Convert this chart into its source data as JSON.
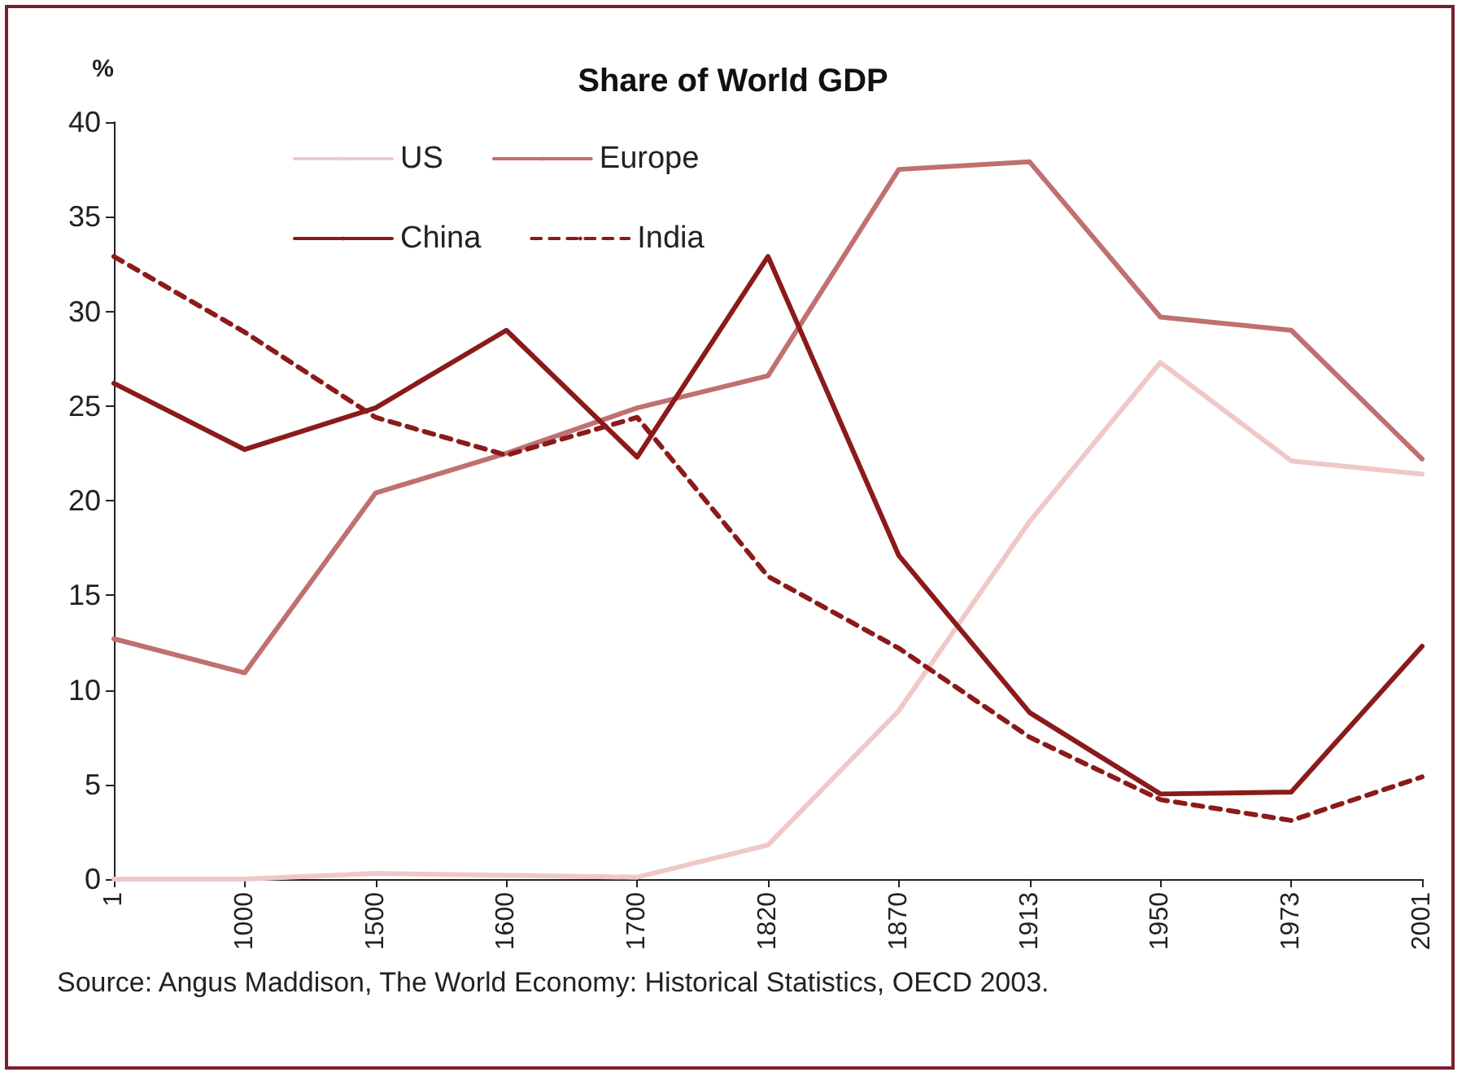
{
  "chart_data": {
    "type": "line",
    "title": "Share of World GDP",
    "ylabel": "%",
    "categories": [
      "1",
      "1000",
      "1500",
      "1600",
      "1700",
      "1820",
      "1870",
      "1913",
      "1950",
      "1973",
      "2001"
    ],
    "series": [
      {
        "name": "US",
        "color": "#f0c8c8",
        "values": [
          0,
          0,
          0.3,
          0.2,
          0.1,
          1.8,
          8.9,
          18.9,
          27.3,
          22.1,
          21.4
        ]
      },
      {
        "name": "Europe",
        "color": "#c07070",
        "values": [
          12.7,
          10.9,
          20.4,
          22.5,
          24.9,
          26.6,
          37.5,
          37.9,
          29.7,
          29.0,
          22.2
        ]
      },
      {
        "name": "China",
        "color": "#8b1a1a",
        "values": [
          26.2,
          22.7,
          24.9,
          29.0,
          22.3,
          32.9,
          17.1,
          8.8,
          4.5,
          4.6,
          12.3
        ]
      },
      {
        "name": "India",
        "color": "#8b1a1a",
        "line_style": "dashed",
        "values": [
          32.9,
          28.9,
          24.4,
          22.4,
          24.4,
          16.0,
          12.2,
          7.5,
          4.2,
          3.1,
          5.4
        ]
      }
    ],
    "ylim": [
      0,
      40
    ],
    "yticks": [
      0,
      5,
      10,
      15,
      20,
      25,
      30,
      35,
      40
    ],
    "grid": false,
    "legend": "top",
    "marker": "none",
    "line_style": "solid",
    "annotations": [
      "Source: Angus Maddison, The World Economy: Historical Statistics, OECD 2003."
    ]
  }
}
